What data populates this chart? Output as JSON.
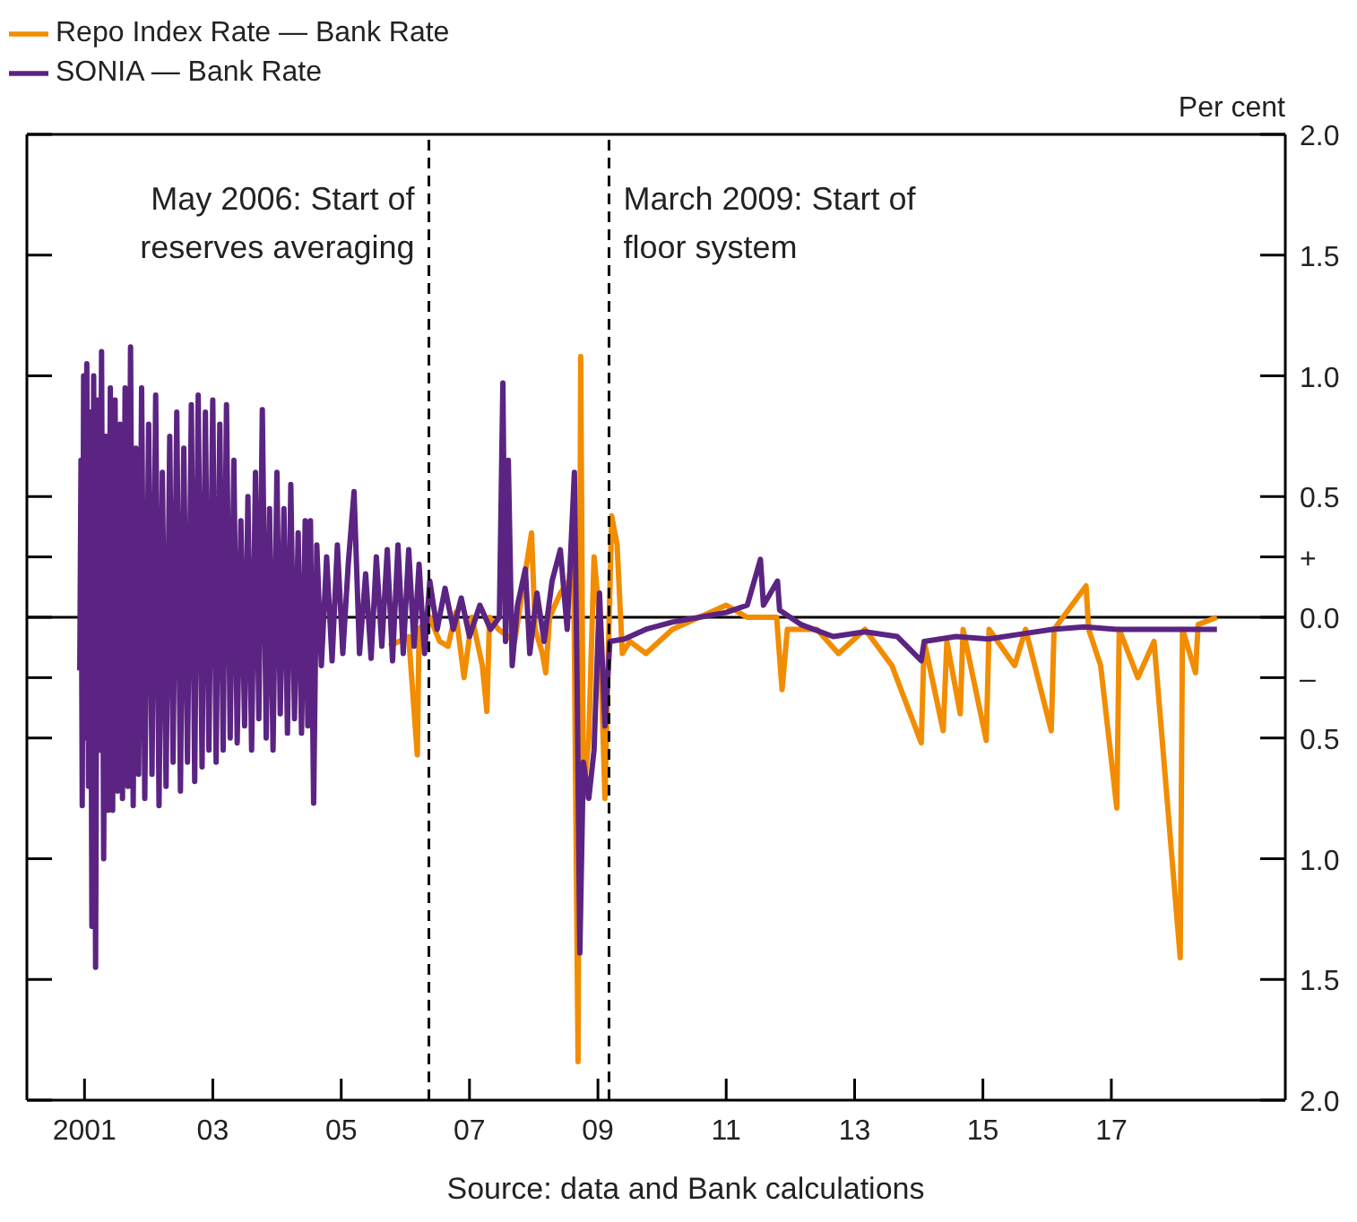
{
  "chart_data": {
    "type": "line",
    "ylabel": "Per cent",
    "legend": "top left",
    "marker": "none",
    "line_style": "solid",
    "annotations": [
      "Source: data and Bank calculations"
    ],
    "xlim": [
      "2000-02-08",
      "2019-09-18"
    ],
    "xticks": [
      {
        "value": "2001-01-01",
        "label": "2001"
      },
      {
        "value": "2003-01-01",
        "label": "03"
      },
      {
        "value": "2005-01-01",
        "label": "05"
      },
      {
        "value": "2007-01-01",
        "label": "07"
      },
      {
        "value": "2009-01-01",
        "label": "09"
      },
      {
        "value": "2011-01-01",
        "label": "11"
      },
      {
        "value": "2013-01-01",
        "label": "13"
      },
      {
        "value": "2015-01-01",
        "label": "15"
      },
      {
        "value": "2017-01-01",
        "label": "17"
      }
    ],
    "ylim": [
      -2,
      2
    ],
    "yticks": [
      {
        "value": 2,
        "label": "2.0"
      },
      {
        "value": 1.5,
        "label": "1.5"
      },
      {
        "value": 1,
        "label": "1.0"
      },
      {
        "value": 0.5,
        "label": "0.5"
      },
      {
        "value": 0.25,
        "label": "+"
      },
      {
        "value": 0,
        "label": "0.0"
      },
      {
        "value": -0.25,
        "label": "–"
      },
      {
        "value": -0.5,
        "label": "0.5"
      },
      {
        "value": -1,
        "label": "1.0"
      },
      {
        "value": -1.5,
        "label": "1.5"
      },
      {
        "value": -2,
        "label": "2.0"
      }
    ],
    "ref_lines": [
      {
        "axis": "y",
        "value": 0,
        "color": "#000000",
        "line_style": "solid"
      },
      {
        "axis": "x",
        "value": "2006-05-15",
        "label": "May 2006: Start of reserves averaging",
        "color": "#000000",
        "line_style": "dashed"
      },
      {
        "axis": "x",
        "value": "2009-03-05",
        "label": "March 2009: Start of floor system",
        "color": "#000000",
        "line_style": "dashed"
      }
    ],
    "series": [
      {
        "name": "Repo Index Rate — Bank Rate",
        "color": "#f28c00",
        "x": [
          "2005-10-01",
          "2006-01-20",
          "2006-03-10",
          "2006-03-20",
          "2006-05-20",
          "2006-07-15",
          "2006-09-01",
          "2006-10-15",
          "2006-12-01",
          "2007-01-15",
          "2007-03-15",
          "2007-04-10",
          "2007-04-25",
          "2007-06-15",
          "2007-09-15",
          "2007-12-20",
          "2008-01-10",
          "2008-02-20",
          "2008-03-10",
          "2008-04-01",
          "2008-06-01",
          "2008-07-20",
          "2008-08-15",
          "2008-09-10",
          "2008-09-25",
          "2008-10-10",
          "2008-11-10",
          "2008-12-10",
          "2009-01-10",
          "2009-02-10",
          "2009-03-20",
          "2009-04-20",
          "2009-05-20",
          "2009-07-01",
          "2009-10-01",
          "2010-03-01",
          "2010-08-01",
          "2011-01-01",
          "2011-05-01",
          "2011-10-15",
          "2011-11-15",
          "2011-12-15",
          "2012-06-01",
          "2012-10-01",
          "2013-03-01",
          "2013-08-01",
          "2014-01-15",
          "2014-02-01",
          "2014-05-20",
          "2014-06-10",
          "2014-08-25",
          "2014-09-10",
          "2015-01-20",
          "2015-02-05",
          "2015-07-01",
          "2015-09-01",
          "2016-01-25",
          "2016-02-10",
          "2016-08-10",
          "2016-08-25",
          "2016-11-01",
          "2017-02-01",
          "2017-02-15",
          "2017-06-01",
          "2017-09-01",
          "2018-01-28",
          "2018-02-10",
          "2018-04-25",
          "2018-05-10",
          "2018-08-25"
        ],
        "values": [
          -0.12,
          -0.08,
          -0.57,
          -0.05,
          0.0,
          -0.1,
          -0.12,
          0.02,
          -0.25,
          0.0,
          -0.2,
          -0.39,
          0.0,
          -0.05,
          -0.1,
          0.35,
          -0.05,
          -0.15,
          -0.23,
          0.0,
          0.1,
          0.15,
          0.3,
          -1.84,
          1.08,
          -0.75,
          -0.5,
          0.25,
          0.0,
          -0.75,
          0.42,
          0.3,
          -0.15,
          -0.1,
          -0.15,
          -0.05,
          0.0,
          0.05,
          0.0,
          0.0,
          -0.3,
          -0.05,
          -0.05,
          -0.15,
          -0.05,
          -0.2,
          -0.52,
          -0.1,
          -0.47,
          -0.1,
          -0.4,
          -0.05,
          -0.51,
          -0.05,
          -0.2,
          -0.05,
          -0.47,
          -0.05,
          0.13,
          -0.05,
          -0.2,
          -0.79,
          -0.05,
          -0.25,
          -0.1,
          -1.41,
          -0.05,
          -0.23,
          -0.03,
          0.0
        ]
      },
      {
        "name": "SONIA — Bank Rate",
        "color": "#5b2482",
        "x": [
          "2000-12-05",
          "2000-12-12",
          "2000-12-19",
          "2000-12-27",
          "2001-01-05",
          "2001-01-14",
          "2001-01-24",
          "2001-02-03",
          "2001-02-12",
          "2001-02-22",
          "2001-03-05",
          "2001-03-16",
          "2001-03-28",
          "2001-04-08",
          "2001-04-20",
          "2001-05-02",
          "2001-05-15",
          "2001-05-28",
          "2001-06-10",
          "2001-06-24",
          "2001-07-08",
          "2001-07-22",
          "2001-08-05",
          "2001-08-20",
          "2001-09-05",
          "2001-09-20",
          "2001-10-05",
          "2001-10-20",
          "2001-11-05",
          "2001-11-22",
          "2001-12-10",
          "2002-01-01",
          "2002-01-20",
          "2002-02-10",
          "2002-03-01",
          "2002-03-20",
          "2002-04-10",
          "2002-05-01",
          "2002-05-20",
          "2002-06-10",
          "2002-07-01",
          "2002-07-20",
          "2002-08-10",
          "2002-09-01",
          "2002-09-20",
          "2002-10-10",
          "2002-11-01",
          "2002-11-20",
          "2002-12-10",
          "2003-01-01",
          "2003-01-20",
          "2003-02-10",
          "2003-03-01",
          "2003-03-20",
          "2003-04-10",
          "2003-05-01",
          "2003-05-20",
          "2003-06-10",
          "2003-07-01",
          "2003-07-20",
          "2003-08-10",
          "2003-09-01",
          "2003-09-20",
          "2003-10-10",
          "2003-11-01",
          "2003-11-20",
          "2003-12-10",
          "2004-01-01",
          "2004-01-20",
          "2004-02-10",
          "2004-03-01",
          "2004-03-20",
          "2004-04-10",
          "2004-05-01",
          "2004-05-20",
          "2004-06-10",
          "2004-06-25",
          "2004-07-10",
          "2004-07-28",
          "2004-08-15",
          "2004-09-10",
          "2004-10-10",
          "2004-11-10",
          "2004-12-10",
          "2005-01-10",
          "2005-02-10",
          "2005-03-15",
          "2005-04-15",
          "2005-05-20",
          "2005-06-20",
          "2005-07-20",
          "2005-08-20",
          "2005-09-20",
          "2005-10-20",
          "2005-11-20",
          "2005-12-20",
          "2006-01-20",
          "2006-02-20",
          "2006-03-20",
          "2006-04-20",
          "2006-05-20",
          "2006-07-01",
          "2006-08-15",
          "2006-10-01",
          "2006-11-15",
          "2007-01-01",
          "2007-03-01",
          "2007-05-01",
          "2007-06-20",
          "2007-07-10",
          "2007-07-25",
          "2007-08-10",
          "2007-09-01",
          "2007-10-01",
          "2007-11-15",
          "2007-12-10",
          "2008-01-20",
          "2008-03-01",
          "2008-04-15",
          "2008-06-01",
          "2008-07-10",
          "2008-08-20",
          "2008-09-05",
          "2008-09-20",
          "2008-10-10",
          "2008-11-10",
          "2008-12-10",
          "2009-01-10",
          "2009-02-10",
          "2009-03-10",
          "2009-06-01",
          "2009-10-01",
          "2010-03-01",
          "2010-08-01",
          "2011-01-01",
          "2011-05-01",
          "2011-07-15",
          "2011-08-01",
          "2011-10-20",
          "2011-11-01",
          "2012-03-01",
          "2012-09-01",
          "2013-03-01",
          "2013-09-01",
          "2014-01-15",
          "2014-02-01",
          "2014-08-01",
          "2015-02-01",
          "2015-08-01",
          "2016-02-01",
          "2016-08-01",
          "2017-02-01",
          "2017-08-01",
          "2018-02-01",
          "2018-08-25"
        ],
        "values": [
          -0.22,
          0.65,
          -0.78,
          1.0,
          -0.5,
          1.05,
          -0.7,
          0.85,
          -1.28,
          1.0,
          -1.45,
          0.9,
          -0.55,
          1.1,
          -1.0,
          0.75,
          -0.8,
          0.95,
          -0.8,
          0.9,
          -0.72,
          0.8,
          -0.75,
          0.95,
          -0.7,
          1.12,
          -0.78,
          0.7,
          -0.65,
          0.95,
          -0.75,
          0.8,
          -0.65,
          0.92,
          -0.78,
          0.6,
          -0.7,
          0.75,
          -0.6,
          0.85,
          -0.72,
          0.7,
          -0.6,
          0.88,
          -0.68,
          0.92,
          -0.62,
          0.85,
          -0.55,
          0.9,
          -0.6,
          0.8,
          -0.55,
          0.88,
          -0.5,
          0.65,
          -0.52,
          0.4,
          -0.45,
          0.5,
          -0.55,
          0.6,
          -0.42,
          0.86,
          -0.5,
          0.45,
          -0.55,
          0.6,
          -0.4,
          0.45,
          -0.48,
          0.55,
          -0.42,
          0.35,
          -0.48,
          0.4,
          -0.45,
          0.4,
          -0.77,
          0.3,
          -0.2,
          0.25,
          -0.18,
          0.3,
          -0.15,
          0.22,
          0.52,
          -0.15,
          0.18,
          -0.17,
          0.25,
          -0.12,
          0.28,
          -0.18,
          0.3,
          -0.15,
          0.28,
          -0.12,
          0.22,
          -0.15,
          0.15,
          -0.05,
          0.12,
          -0.05,
          0.08,
          -0.08,
          0.05,
          -0.05,
          0.0,
          0.97,
          -0.1,
          0.65,
          -0.2,
          0.05,
          0.2,
          -0.15,
          0.1,
          -0.1,
          0.15,
          0.28,
          -0.05,
          0.6,
          -0.3,
          -1.39,
          -0.6,
          -0.75,
          -0.55,
          0.1,
          -0.45,
          -0.1,
          -0.09,
          -0.05,
          -0.02,
          0.0,
          0.02,
          0.05,
          0.24,
          0.05,
          0.15,
          0.03,
          -0.03,
          -0.08,
          -0.06,
          -0.08,
          -0.18,
          -0.1,
          -0.08,
          -0.09,
          -0.07,
          -0.05,
          -0.04,
          -0.05,
          -0.05,
          -0.05,
          -0.05
        ]
      }
    ]
  }
}
